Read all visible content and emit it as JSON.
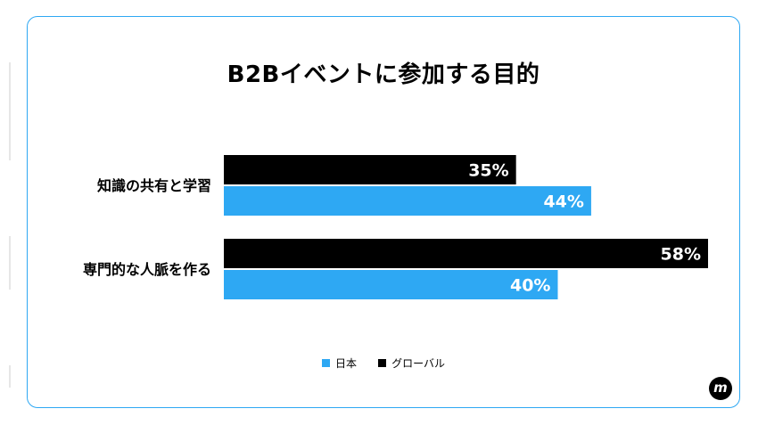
{
  "chart_data": {
    "type": "bar",
    "orientation": "horizontal",
    "title": "B2Bイベントに参加する目的",
    "categories": [
      "知識の共有と学習",
      "専門的な人脈を作る"
    ],
    "series": [
      {
        "name": "グローバル",
        "values": [
          35,
          58
        ],
        "color": "#000000",
        "label_suffix": "%"
      },
      {
        "name": "日本",
        "values": [
          44,
          40
        ],
        "color": "#2ea8f3",
        "label_suffix": "%"
      }
    ],
    "xlim": [
      0,
      58
    ],
    "grid": false,
    "legend_position": "bottom-center",
    "legend_order": [
      "日本",
      "グローバル"
    ]
  },
  "colors": {
    "accent": "#2ea8f3",
    "dark": "#000000"
  },
  "logo": {
    "icon": "m-logo-icon",
    "letter": "m"
  }
}
